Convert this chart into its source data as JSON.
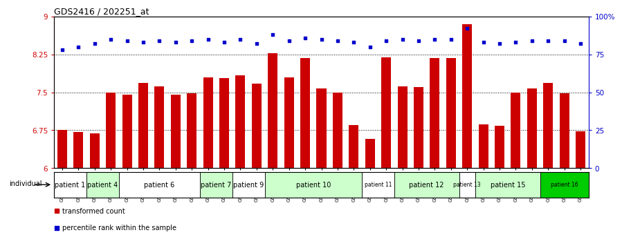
{
  "title": "GDS2416 / 202251_at",
  "samples": [
    "GSM135233",
    "GSM135234",
    "GSM135260",
    "GSM135232",
    "GSM135235",
    "GSM135236",
    "GSM135231",
    "GSM135242",
    "GSM135243",
    "GSM135251",
    "GSM135252",
    "GSM135244",
    "GSM135259",
    "GSM135254",
    "GSM135255",
    "GSM135261",
    "GSM135229",
    "GSM135230",
    "GSM135245",
    "GSM135246",
    "GSM135258",
    "GSM135247",
    "GSM135250",
    "GSM135237",
    "GSM135238",
    "GSM135239",
    "GSM135256",
    "GSM135257",
    "GSM135240",
    "GSM135248",
    "GSM135253",
    "GSM135241",
    "GSM135249"
  ],
  "bar_values": [
    6.75,
    6.72,
    6.69,
    7.5,
    7.45,
    7.68,
    7.62,
    7.46,
    7.48,
    7.8,
    7.78,
    7.84,
    7.67,
    8.27,
    7.8,
    8.18,
    7.58,
    7.5,
    6.85,
    6.58,
    8.19,
    7.62,
    7.6,
    8.18,
    8.18,
    8.85,
    6.86,
    6.84,
    7.5,
    7.58,
    7.68,
    7.48,
    6.73
  ],
  "percentile_values": [
    78,
    80,
    82,
    85,
    84,
    83,
    84,
    83,
    84,
    85,
    83,
    85,
    82,
    88,
    84,
    86,
    85,
    84,
    83,
    80,
    84,
    85,
    84,
    85,
    85,
    92,
    83,
    82,
    83,
    84,
    84,
    84,
    82
  ],
  "ylim_left": [
    6,
    9
  ],
  "ylim_right": [
    0,
    100
  ],
  "yticks_left": [
    6,
    6.75,
    7.5,
    8.25,
    9
  ],
  "yticks_left_labels": [
    "6",
    "6.75",
    "7.5",
    "8.25",
    "9"
  ],
  "yticks_right": [
    0,
    25,
    50,
    75,
    100
  ],
  "yticks_right_labels": [
    "0",
    "25",
    "50",
    "75",
    "100%"
  ],
  "bar_color": "#cc0000",
  "dot_color": "#0000cc",
  "hline_values": [
    6.75,
    7.5,
    8.25
  ],
  "patient_spans": [
    {
      "label": "patient 1",
      "start": 0,
      "end": 2,
      "color": "#ffffff",
      "fontsize": 7
    },
    {
      "label": "patient 4",
      "start": 2,
      "end": 4,
      "color": "#ccffcc",
      "fontsize": 7
    },
    {
      "label": "patient 6",
      "start": 4,
      "end": 9,
      "color": "#ffffff",
      "fontsize": 7
    },
    {
      "label": "patient 7",
      "start": 9,
      "end": 11,
      "color": "#ccffcc",
      "fontsize": 7
    },
    {
      "label": "patient 9",
      "start": 11,
      "end": 13,
      "color": "#ffffff",
      "fontsize": 7
    },
    {
      "label": "patient 10",
      "start": 13,
      "end": 19,
      "color": "#ccffcc",
      "fontsize": 7
    },
    {
      "label": "patient 11",
      "start": 19,
      "end": 21,
      "color": "#ffffff",
      "fontsize": 5.5
    },
    {
      "label": "patient 12",
      "start": 21,
      "end": 25,
      "color": "#ccffcc",
      "fontsize": 7
    },
    {
      "label": "patient 13",
      "start": 25,
      "end": 26,
      "color": "#ffffff",
      "fontsize": 5.5
    },
    {
      "label": "patient 15",
      "start": 26,
      "end": 30,
      "color": "#ccffcc",
      "fontsize": 7
    },
    {
      "label": "patient 16",
      "start": 30,
      "end": 33,
      "color": "#00cc00",
      "fontsize": 5.5
    }
  ],
  "legend_items": [
    {
      "label": "transformed count",
      "color": "#cc0000"
    },
    {
      "label": "percentile rank within the sample",
      "color": "#0000cc"
    }
  ],
  "bg_color": "#f0f0f0",
  "plot_bg": "#ffffff"
}
